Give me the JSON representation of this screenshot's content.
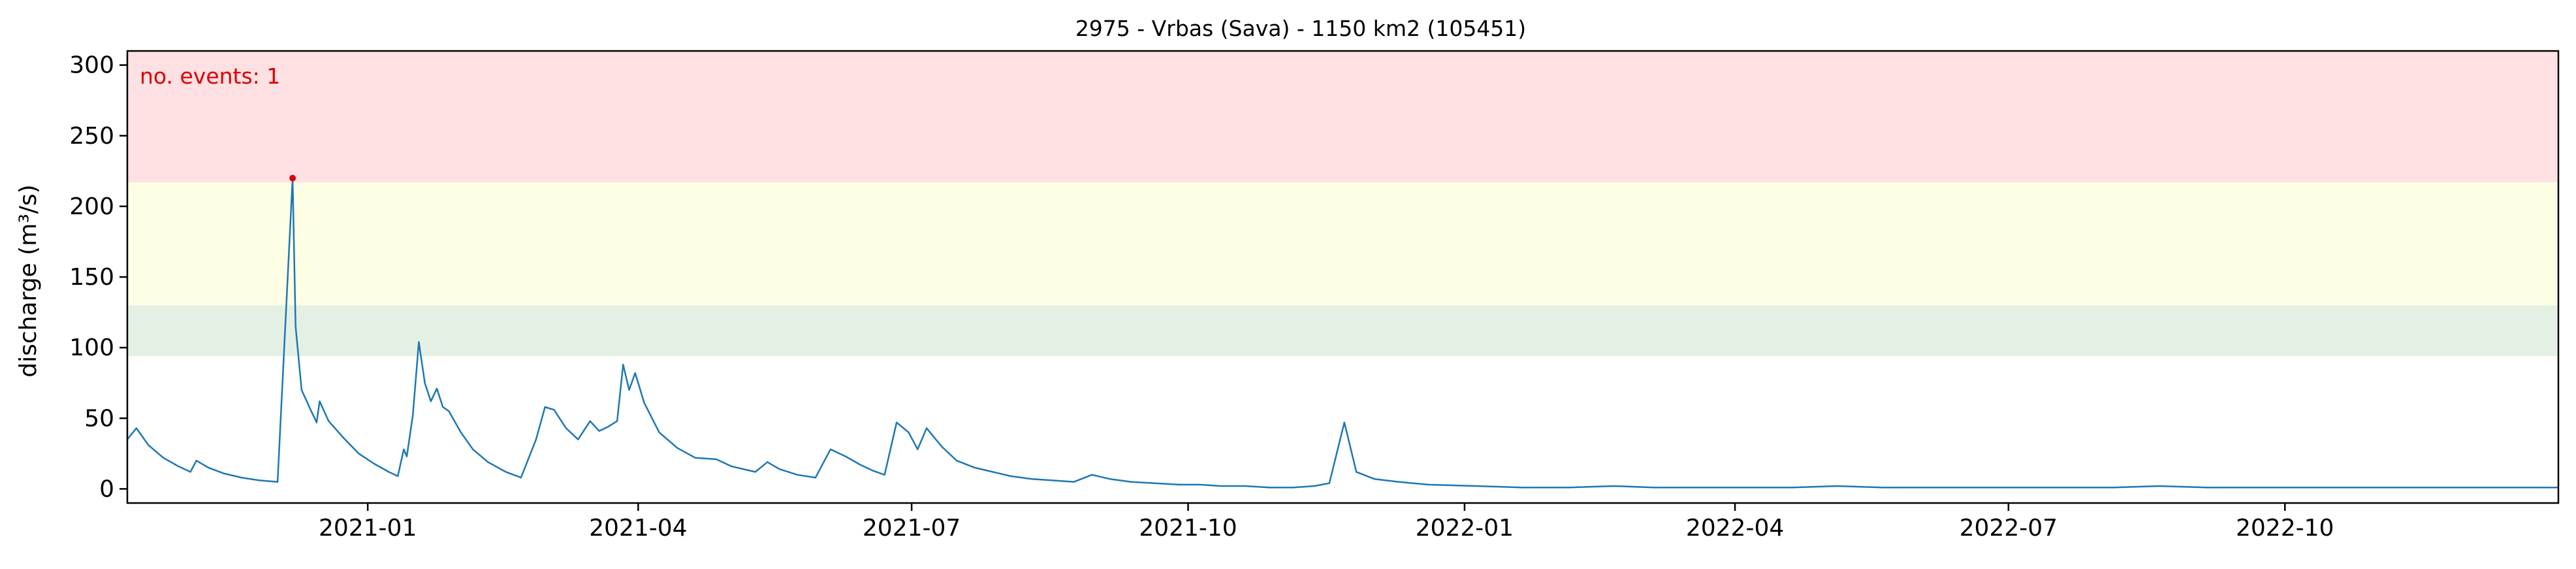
{
  "chart_data": {
    "type": "line",
    "title": "2975 - Vrbas (Sava) - 1150 km2 (105451)",
    "xlabel": "",
    "ylabel": "discharge (m³/s)",
    "xlim": [
      "2020-10-13",
      "2022-12-31"
    ],
    "ylim": [
      -10,
      310
    ],
    "yticks": [
      0,
      50,
      100,
      150,
      200,
      250,
      300
    ],
    "xticks": [
      {
        "date": "2021-01-01",
        "label": "2021-01"
      },
      {
        "date": "2021-04-01",
        "label": "2021-04"
      },
      {
        "date": "2021-07-01",
        "label": "2021-07"
      },
      {
        "date": "2021-10-01",
        "label": "2021-10"
      },
      {
        "date": "2022-01-01",
        "label": "2022-01"
      },
      {
        "date": "2022-04-01",
        "label": "2022-04"
      },
      {
        "date": "2022-07-01",
        "label": "2022-07"
      },
      {
        "date": "2022-10-01",
        "label": "2022-10"
      }
    ],
    "threshold_bands": [
      {
        "from": 94,
        "to": 130,
        "color": "#e5f0e5"
      },
      {
        "from": 130,
        "to": 217,
        "color": "#fefee5"
      },
      {
        "from": 217,
        "to": 310,
        "color": "#ffe0e3"
      }
    ],
    "annotation": {
      "text": "no. events: 1",
      "color": "#dd0000"
    },
    "events": [
      {
        "date": "2020-12-07",
        "value": 220,
        "color": "#dd0000"
      }
    ],
    "series": [
      {
        "color": "#1f77b4",
        "points": [
          [
            "2020-10-13",
            35
          ],
          [
            "2020-10-16",
            43
          ],
          [
            "2020-10-20",
            31
          ],
          [
            "2020-10-25",
            22
          ],
          [
            "2020-10-30",
            16
          ],
          [
            "2020-11-03",
            12
          ],
          [
            "2020-11-05",
            20
          ],
          [
            "2020-11-09",
            15
          ],
          [
            "2020-11-14",
            11
          ],
          [
            "2020-11-20",
            8
          ],
          [
            "2020-11-26",
            6
          ],
          [
            "2020-12-02",
            5
          ],
          [
            "2020-12-07",
            220
          ],
          [
            "2020-12-08",
            115
          ],
          [
            "2020-12-10",
            70
          ],
          [
            "2020-12-13",
            56
          ],
          [
            "2020-12-15",
            47
          ],
          [
            "2020-12-16",
            62
          ],
          [
            "2020-12-19",
            48
          ],
          [
            "2020-12-24",
            36
          ],
          [
            "2020-12-29",
            25
          ],
          [
            "2021-01-03",
            18
          ],
          [
            "2021-01-08",
            12
          ],
          [
            "2021-01-11",
            9
          ],
          [
            "2021-01-13",
            28
          ],
          [
            "2021-01-14",
            23
          ],
          [
            "2021-01-16",
            52
          ],
          [
            "2021-01-18",
            104
          ],
          [
            "2021-01-20",
            75
          ],
          [
            "2021-01-22",
            62
          ],
          [
            "2021-01-24",
            71
          ],
          [
            "2021-01-26",
            58
          ],
          [
            "2021-01-28",
            55
          ],
          [
            "2021-02-01",
            40
          ],
          [
            "2021-02-05",
            28
          ],
          [
            "2021-02-10",
            19
          ],
          [
            "2021-02-16",
            12
          ],
          [
            "2021-02-21",
            8
          ],
          [
            "2021-02-26",
            35
          ],
          [
            "2021-03-01",
            58
          ],
          [
            "2021-03-04",
            56
          ],
          [
            "2021-03-08",
            43
          ],
          [
            "2021-03-12",
            35
          ],
          [
            "2021-03-16",
            48
          ],
          [
            "2021-03-19",
            41
          ],
          [
            "2021-03-22",
            44
          ],
          [
            "2021-03-25",
            48
          ],
          [
            "2021-03-27",
            88
          ],
          [
            "2021-03-29",
            70
          ],
          [
            "2021-03-31",
            82
          ],
          [
            "2021-04-03",
            61
          ],
          [
            "2021-04-08",
            40
          ],
          [
            "2021-04-14",
            29
          ],
          [
            "2021-04-20",
            22
          ],
          [
            "2021-04-27",
            21
          ],
          [
            "2021-05-02",
            16
          ],
          [
            "2021-05-06",
            14
          ],
          [
            "2021-05-10",
            12
          ],
          [
            "2021-05-14",
            19
          ],
          [
            "2021-05-18",
            14
          ],
          [
            "2021-05-24",
            10
          ],
          [
            "2021-05-30",
            8
          ],
          [
            "2021-06-04",
            28
          ],
          [
            "2021-06-09",
            23
          ],
          [
            "2021-06-14",
            17
          ],
          [
            "2021-06-18",
            13
          ],
          [
            "2021-06-22",
            10
          ],
          [
            "2021-06-26",
            47
          ],
          [
            "2021-06-30",
            40
          ],
          [
            "2021-07-03",
            28
          ],
          [
            "2021-07-06",
            43
          ],
          [
            "2021-07-11",
            30
          ],
          [
            "2021-07-16",
            20
          ],
          [
            "2021-07-22",
            15
          ],
          [
            "2021-07-28",
            12
          ],
          [
            "2021-08-03",
            9
          ],
          [
            "2021-08-10",
            7
          ],
          [
            "2021-08-17",
            6
          ],
          [
            "2021-08-24",
            5
          ],
          [
            "2021-08-30",
            10
          ],
          [
            "2021-09-05",
            7
          ],
          [
            "2021-09-12",
            5
          ],
          [
            "2021-09-20",
            4
          ],
          [
            "2021-09-28",
            3
          ],
          [
            "2021-10-05",
            3
          ],
          [
            "2021-10-12",
            2
          ],
          [
            "2021-10-20",
            2
          ],
          [
            "2021-10-28",
            1
          ],
          [
            "2021-11-05",
            1
          ],
          [
            "2021-11-12",
            2
          ],
          [
            "2021-11-17",
            4
          ],
          [
            "2021-11-22",
            47
          ],
          [
            "2021-11-26",
            12
          ],
          [
            "2021-12-02",
            7
          ],
          [
            "2021-12-10",
            5
          ],
          [
            "2021-12-20",
            3
          ],
          [
            "2022-01-05",
            2
          ],
          [
            "2022-01-20",
            1
          ],
          [
            "2022-02-05",
            1
          ],
          [
            "2022-02-20",
            2
          ],
          [
            "2022-03-05",
            1
          ],
          [
            "2022-03-20",
            1
          ],
          [
            "2022-04-05",
            1
          ],
          [
            "2022-04-20",
            1
          ],
          [
            "2022-05-05",
            2
          ],
          [
            "2022-05-20",
            1
          ],
          [
            "2022-06-05",
            1
          ],
          [
            "2022-06-20",
            1
          ],
          [
            "2022-07-05",
            1
          ],
          [
            "2022-07-20",
            1
          ],
          [
            "2022-08-05",
            1
          ],
          [
            "2022-08-20",
            2
          ],
          [
            "2022-09-05",
            1
          ],
          [
            "2022-09-20",
            1
          ],
          [
            "2022-10-05",
            1
          ],
          [
            "2022-10-20",
            1
          ],
          [
            "2022-11-05",
            1
          ],
          [
            "2022-11-20",
            1
          ],
          [
            "2022-12-05",
            1
          ],
          [
            "2022-12-20",
            1
          ],
          [
            "2022-12-31",
            1
          ]
        ]
      }
    ]
  }
}
